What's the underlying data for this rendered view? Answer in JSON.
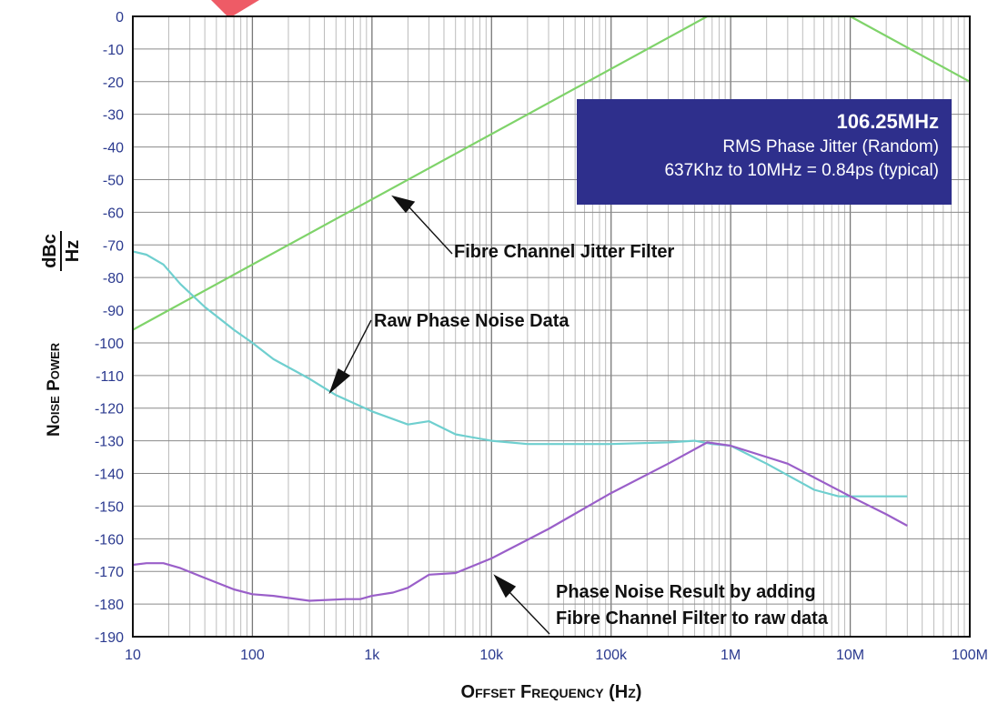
{
  "chart_data": {
    "type": "line",
    "x_scale": "log",
    "xlim": [
      10,
      100000000
    ],
    "ylim": [
      -190,
      0
    ],
    "x_tick_labels": [
      "10",
      "100",
      "1k",
      "10k",
      "100k",
      "1M",
      "10M",
      "100M"
    ],
    "y_tick_labels": [
      "0",
      "-10",
      "-20",
      "-30",
      "-40",
      "-50",
      "-60",
      "-70",
      "-80",
      "-90",
      "-100",
      "-110",
      "-120",
      "-130",
      "-140",
      "-150",
      "-160",
      "-170",
      "-180",
      "-190"
    ],
    "xlabel": "Offset Frequency (Hz)",
    "ylabel_text": "Noise Power",
    "ylabel_unit_num": "dBc",
    "ylabel_unit_den": "Hz",
    "grid": true,
    "colors": {
      "filter": "#7fd36a",
      "raw": "#6fcfcf",
      "result": "#9a5fc9",
      "box": "#2e2f8c",
      "ticks": "#2b3a8f"
    },
    "series": [
      {
        "key": "filter",
        "x": [
          10,
          637000,
          10000000,
          100000000
        ],
        "y": [
          -96,
          0,
          0,
          -20
        ]
      },
      {
        "key": "raw",
        "x": [
          10,
          13,
          18,
          25,
          40,
          70,
          100,
          150,
          300,
          500,
          1000,
          2000,
          3000,
          5000,
          10000,
          20000,
          100000,
          300000,
          500000,
          700000,
          1000000,
          2000000,
          5000000,
          8000000,
          10000000,
          20000000,
          30000000
        ],
        "y": [
          -72,
          -73,
          -76,
          -82,
          -89,
          -96,
          -100,
          -105,
          -111,
          -116,
          -121,
          -125,
          -124,
          -128,
          -130,
          -131,
          -131,
          -130.5,
          -130,
          -131,
          -131.5,
          -137,
          -145,
          -147,
          -147,
          -147,
          -147
        ]
      },
      {
        "key": "result",
        "x": [
          10,
          13,
          18,
          25,
          40,
          70,
          100,
          150,
          300,
          600,
          800,
          1000,
          1500,
          2000,
          3000,
          5000,
          10000,
          30000,
          100000,
          300000,
          637000,
          1000000,
          3000000,
          10000000,
          20000000,
          30000000
        ],
        "y": [
          -168,
          -167.5,
          -167.5,
          -169,
          -172,
          -175.5,
          -177,
          -177.5,
          -179,
          -178.5,
          -178.5,
          -177.5,
          -176.5,
          -175,
          -171,
          -170.5,
          -166,
          -157,
          -146,
          -137,
          -130.5,
          -131.5,
          -137,
          -147,
          -152.5,
          -156
        ]
      }
    ],
    "annotations": {
      "filter_label": "Fibre Channel Jitter Filter",
      "raw_label": "Raw Phase Noise Data",
      "result_label_line1": "Phase Noise Result by adding",
      "result_label_line2": "Fibre Channel Filter to raw data"
    },
    "info_box": {
      "title": "106.25MHz",
      "line1": "RMS Phase Jitter  (Random)",
      "line2": "637Khz to 10MHz = 0.84ps (typical)"
    }
  }
}
